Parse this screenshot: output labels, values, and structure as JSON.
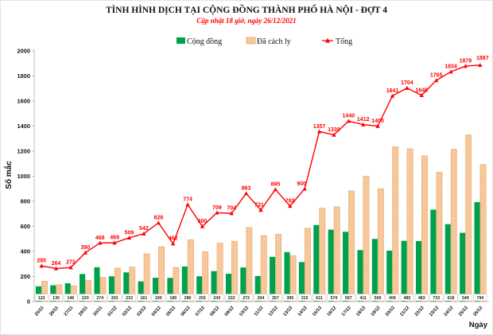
{
  "title": "TÌNH HÌNH DỊCH TẠI CỘNG ĐỒNG THÀNH PHỐ HÀ NỘI - ĐỢT 4",
  "subtitle": "Cập nhật 18 giờ, ngày 26/12/2021",
  "legend": {
    "community_label": "Cộng đồng",
    "quarantine_label": "Đã cách ly",
    "total_label": "Tổng"
  },
  "axes": {
    "y_label": "Số mắc",
    "x_label": "Ngày"
  },
  "colors": {
    "community_green": "#00A14B",
    "quarantine_fill": "#F8CB9E",
    "quarantine_dot": "#EDB27C",
    "quarantine_border": "#E9A76F",
    "total_red": "#FF0000",
    "axis_gray": "#BFBFBF"
  },
  "chart_data": {
    "type": "combo bar+line",
    "title": "TÌNH HÌNH DỊCH TẠI CỘNG ĐỒNG THÀNH PHỐ HÀ NỘI - ĐỢT 4",
    "subtitle": "Cập nhật 18 giờ, ngày 26/12/2021",
    "xlabel": "Ngày",
    "ylabel": "Số mắc",
    "ylim": [
      0,
      2000
    ],
    "ytick_step": 200,
    "grid": false,
    "legend_position": "top",
    "categories": [
      "25/11",
      "26/11",
      "27/11",
      "29/11",
      "30/11",
      "01/12",
      "02/12",
      "03/12",
      "04/12",
      "05/12",
      "06/12",
      "07/12",
      "08/12",
      "09/12",
      "10/12",
      "11/12",
      "12/12",
      "13/12",
      "14/12",
      "15/12",
      "16/12",
      "17/12",
      "18/12",
      "19/12",
      "20/12",
      "21/12",
      "22/12",
      "23/12",
      "24/12",
      "25/12",
      "26/12"
    ],
    "series": [
      {
        "name": "Cộng đồng",
        "type": "bar",
        "color": "#00A14B",
        "values": [
          122,
          130,
          146,
          220,
          274,
          202,
          233,
          161,
          190,
          189,
          280,
          202,
          243,
          222,
          272,
          204,
          357,
          395,
          315,
          611,
          574,
          557,
          411,
          500,
          406,
          485,
          483,
          733,
          618,
          549,
          794
        ]
      },
      {
        "name": "Đã cách ly",
        "type": "bar",
        "color": "#F8CB9E",
        "values": [
          163,
          134,
          126,
          170,
          194,
          267,
          276,
          381,
          438,
          273,
          494,
          398,
          466,
          482,
          591,
          527,
          538,
          367,
          585,
          746,
          756,
          883,
          1001,
          900,
          1235,
          1219,
          1163,
          1032,
          1216,
          1330,
          1093
        ]
      },
      {
        "name": "Tổng",
        "type": "line",
        "color": "#FF0000",
        "values": [
          285,
          264,
          272,
          390,
          468,
          469,
          509,
          542,
          628,
          462,
          774,
          600,
          709,
          704,
          863,
          731,
          895,
          762,
          900,
          1357,
          1330,
          1440,
          1412,
          1400,
          1641,
          1704,
          1646,
          1765,
          1834,
          1879,
          1887
        ]
      }
    ]
  }
}
